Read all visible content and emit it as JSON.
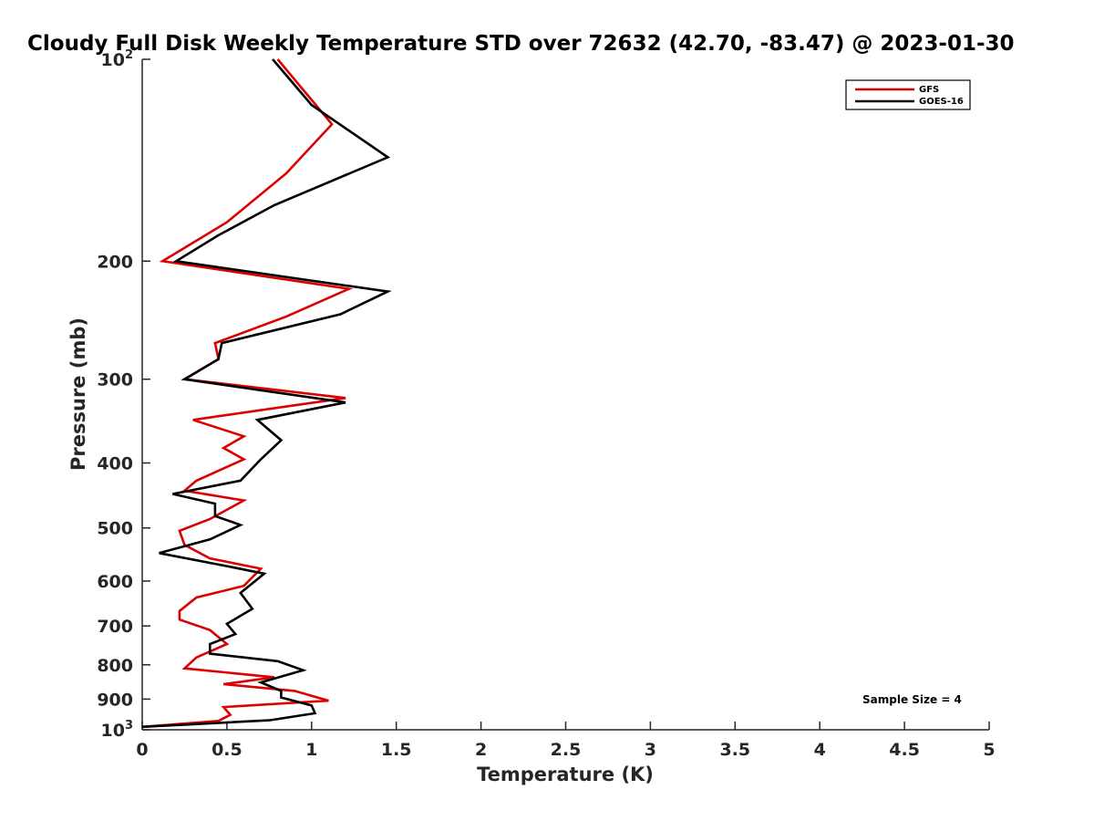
{
  "chart_data": {
    "type": "line",
    "title": "Cloudy Full Disk Weekly Temperature STD over 72632 (42.70, -83.47) @ 2023-01-30",
    "xlabel": "Temperature (K)",
    "ylabel": "Pressure (mb)",
    "xlim": [
      0,
      5
    ],
    "ylim": [
      100,
      1000
    ],
    "y_scale": "log",
    "y_reversed": true,
    "x_ticks": [
      "0",
      "0.5",
      "1",
      "1.5",
      "2",
      "2.5",
      "3",
      "3.5",
      "4",
      "4.5",
      "5"
    ],
    "y_ticks": [
      {
        "value": 100,
        "base": "10",
        "exp": "2"
      },
      {
        "value": 200,
        "label": "200"
      },
      {
        "value": 300,
        "label": "300"
      },
      {
        "value": 400,
        "label": "400"
      },
      {
        "value": 500,
        "label": "500"
      },
      {
        "value": 600,
        "label": "600"
      },
      {
        "value": 700,
        "label": "700"
      },
      {
        "value": 800,
        "label": "800"
      },
      {
        "value": 900,
        "label": "900"
      },
      {
        "value": 1000,
        "base": "10",
        "exp": "3"
      }
    ],
    "grid": false,
    "legend_position": "top-right",
    "annotation": "Sample Size = 4",
    "series": [
      {
        "name": "GFS",
        "color": "#dd0000",
        "points": [
          [
            0.8,
            100
          ],
          [
            1.12,
            125
          ],
          [
            0.85,
            148
          ],
          [
            0.5,
            175
          ],
          [
            0.12,
            200
          ],
          [
            1.22,
            220
          ],
          [
            0.85,
            242
          ],
          [
            0.43,
            265
          ],
          [
            0.45,
            280
          ],
          [
            0.25,
            300
          ],
          [
            1.2,
            320
          ],
          [
            0.3,
            345
          ],
          [
            0.6,
            365
          ],
          [
            0.48,
            380
          ],
          [
            0.6,
            395
          ],
          [
            0.32,
            425
          ],
          [
            0.25,
            440
          ],
          [
            0.6,
            455
          ],
          [
            0.4,
            485
          ],
          [
            0.22,
            505
          ],
          [
            0.25,
            530
          ],
          [
            0.4,
            555
          ],
          [
            0.7,
            575
          ],
          [
            0.6,
            610
          ],
          [
            0.32,
            635
          ],
          [
            0.22,
            665
          ],
          [
            0.22,
            685
          ],
          [
            0.4,
            710
          ],
          [
            0.5,
            745
          ],
          [
            0.32,
            780
          ],
          [
            0.25,
            810
          ],
          [
            0.78,
            835
          ],
          [
            0.48,
            855
          ],
          [
            0.9,
            875
          ],
          [
            1.1,
            905
          ],
          [
            0.48,
            925
          ],
          [
            0.52,
            950
          ],
          [
            0.45,
            970
          ],
          [
            0.0,
            990
          ]
        ]
      },
      {
        "name": "GOES-16",
        "color": "#000000",
        "points": [
          [
            0.77,
            100
          ],
          [
            1.0,
            117
          ],
          [
            1.45,
            140
          ],
          [
            0.78,
            165
          ],
          [
            0.45,
            183
          ],
          [
            0.2,
            200
          ],
          [
            1.45,
            222
          ],
          [
            1.17,
            240
          ],
          [
            0.47,
            265
          ],
          [
            0.45,
            280
          ],
          [
            0.25,
            300
          ],
          [
            1.2,
            325
          ],
          [
            0.68,
            345
          ],
          [
            0.82,
            370
          ],
          [
            0.7,
            395
          ],
          [
            0.58,
            425
          ],
          [
            0.18,
            445
          ],
          [
            0.43,
            460
          ],
          [
            0.43,
            480
          ],
          [
            0.58,
            495
          ],
          [
            0.4,
            520
          ],
          [
            0.1,
            545
          ],
          [
            0.5,
            570
          ],
          [
            0.72,
            585
          ],
          [
            0.58,
            625
          ],
          [
            0.65,
            660
          ],
          [
            0.5,
            695
          ],
          [
            0.55,
            720
          ],
          [
            0.4,
            745
          ],
          [
            0.4,
            770
          ],
          [
            0.8,
            790
          ],
          [
            0.95,
            815
          ],
          [
            0.7,
            850
          ],
          [
            0.82,
            875
          ],
          [
            0.82,
            895
          ],
          [
            1.0,
            920
          ],
          [
            1.02,
            945
          ],
          [
            0.75,
            968
          ],
          [
            0.0,
            990
          ]
        ]
      }
    ]
  }
}
